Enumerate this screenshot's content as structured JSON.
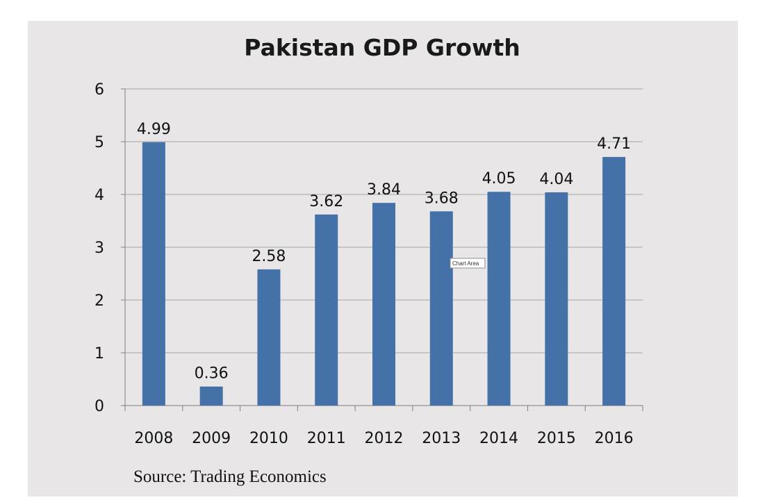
{
  "chart_data": {
    "type": "bar",
    "title": "Pakistan GDP Growth",
    "categories": [
      "2008",
      "2009",
      "2010",
      "2011",
      "2012",
      "2013",
      "2014",
      "2015",
      "2016"
    ],
    "values": [
      4.99,
      0.36,
      2.58,
      3.62,
      3.84,
      3.68,
      4.05,
      4.04,
      4.71
    ],
    "data_labels": [
      "4.99",
      "0.36",
      "2.58",
      "3.62",
      "3.84",
      "3.68",
      "4.05",
      "4.04",
      "4.71"
    ],
    "ylim": [
      0,
      6
    ],
    "yticks": [
      "0",
      "1",
      "2",
      "3",
      "4",
      "5",
      "6"
    ],
    "grid": true,
    "legend": "none",
    "bar_color": "#4472a8",
    "gridline_color": "#a6a6a6",
    "background_color": "#e8e6e7"
  },
  "source_note": "Source: Trading Economics",
  "tooltip": {
    "label": "Chart Area"
  }
}
